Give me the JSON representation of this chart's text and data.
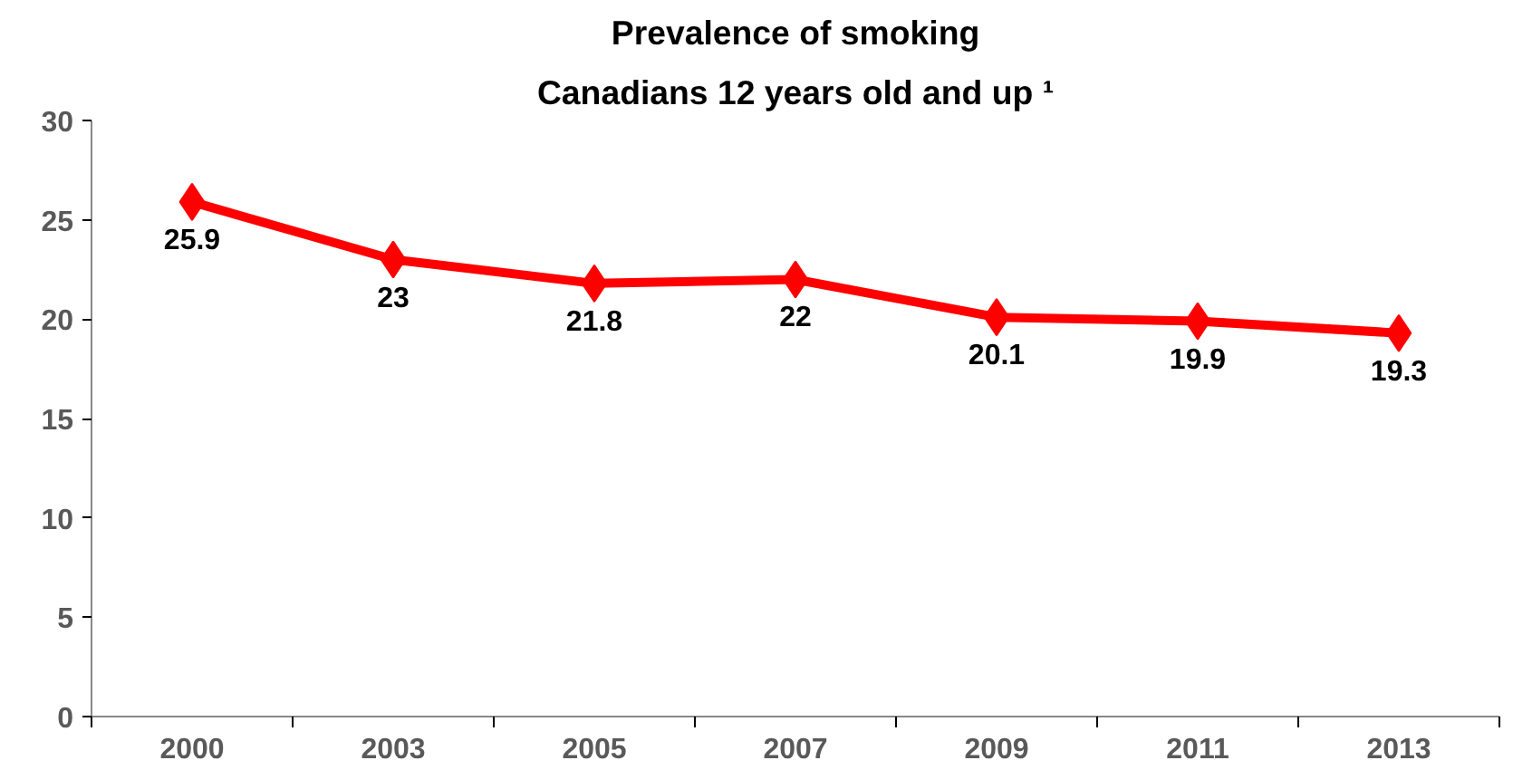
{
  "chart_data": {
    "type": "line",
    "title": "Prevalence of smoking",
    "subtitle": "Canadians 12 years old and up ¹",
    "categories": [
      "2000",
      "2003",
      "2005",
      "2007",
      "2009",
      "2011",
      "2013"
    ],
    "series": [
      {
        "color": "#ff0000",
        "values": [
          25.9,
          23,
          21.8,
          22,
          20.1,
          19.9,
          19.3
        ]
      }
    ],
    "ylim": [
      0,
      30
    ],
    "yticks": [
      0,
      5,
      10,
      15,
      20,
      25,
      30
    ],
    "grid": false,
    "marker": "diamond",
    "line_style": "solid",
    "data_labels": true
  }
}
